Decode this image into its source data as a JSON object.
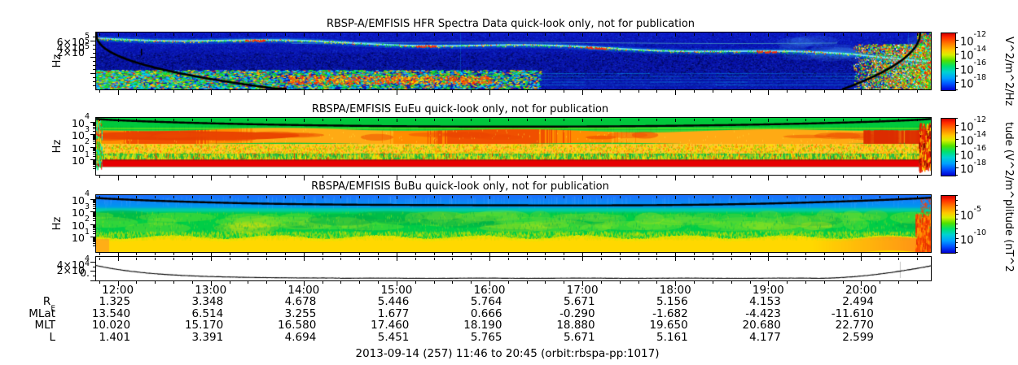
{
  "figure": {
    "caption": "2013-09-14 (257) 11:46 to 20:45 (orbit:rbspa-pp:1017)"
  },
  "panels": [
    {
      "title": "RBSP-A/EMFISIS  HFR Spectra Data quick-look only, not for publication",
      "ylabel": "Hz",
      "yticks": [
        "6×10^5",
        "4×10^5",
        "2×10^5"
      ],
      "colorbar": {
        "ticks": [
          "10^-12",
          "10^-14",
          "10^-16",
          "10^-18"
        ],
        "label": "V^2/m^2/Hz"
      }
    },
    {
      "title": "RBSPA/EMFISIS  EuEu quick-look only, not for publication",
      "ylabel": "Hz",
      "yticks": [
        "10^4",
        "10^3",
        "10^2",
        "10^1"
      ],
      "colorbar": {
        "ticks": [
          "10^-12",
          "10^-14",
          "10^-16",
          "10^-18"
        ],
        "label": "tude (V^2/m^"
      }
    },
    {
      "title": "RBSPA/EMFISIS  BuBu quick-look only, not for publication",
      "ylabel": "Hz",
      "yticks": [
        "10^4",
        "10^3",
        "10^2",
        "10^1"
      ],
      "colorbar": {
        "ticks": [
          "10^-5",
          "10^-10"
        ],
        "label": "plitude (nT^2"
      }
    },
    {
      "yticks": [
        "4×10^4",
        "2×10^4",
        "0."
      ]
    }
  ],
  "time_axis": {
    "start": "11:46",
    "end": "20:45",
    "hour_labels": [
      "12:00",
      "13:00",
      "14:00",
      "15:00",
      "16:00",
      "17:00",
      "18:00",
      "19:00",
      "20:00"
    ]
  },
  "ephemeris": {
    "rows": [
      {
        "label": "R",
        "sub": "E",
        "values": [
          "1.325",
          "3.348",
          "4.678",
          "5.446",
          "5.764",
          "5.671",
          "5.156",
          "4.153",
          "2.494"
        ]
      },
      {
        "label": "MLat",
        "values": [
          "13.540",
          "6.514",
          "3.255",
          "1.677",
          "0.666",
          "-0.290",
          "-1.682",
          "-4.423",
          "-11.610"
        ]
      },
      {
        "label": "MLT",
        "values": [
          "10.020",
          "15.170",
          "16.580",
          "17.460",
          "18.190",
          "18.880",
          "19.650",
          "20.680",
          "22.770"
        ]
      },
      {
        "label": "L",
        "values": [
          "1.401",
          "3.391",
          "4.694",
          "5.451",
          "5.765",
          "5.671",
          "5.161",
          "4.177",
          "2.599"
        ]
      }
    ]
  },
  "chart_data": [
    {
      "type": "heatmap",
      "subtype": "spectrogram",
      "title": "RBSP-A/EMFISIS HFR Spectra Data quick-look only, not for publication",
      "x_range": [
        "11:46",
        "20:45"
      ],
      "y_axis": {
        "label": "Hz",
        "scale": "linear",
        "range": [
          0,
          700000
        ],
        "ticks": [
          200000,
          400000,
          600000
        ]
      },
      "z_axis": {
        "label": "V^2/m^2/Hz",
        "scale": "log",
        "range": [
          1e-19,
          1e-11
        ],
        "ticks": [
          1e-12,
          1e-14,
          1e-16,
          1e-18
        ]
      },
      "features": [
        "dark-blue low-power background",
        "upper-hybrid emission band drifting from ~600 kHz at 12:00 down to ~300 kHz by 20:00 with yellow/red enhancements",
        "black fce trace falling off-scale near 13:30 and returning above scale after ~20:00",
        "broadband speckled low-frequency emissions 11:46-14:30 near bottom of panel",
        "intense broadband perigee emissions after 20:15 at right edge"
      ]
    },
    {
      "type": "heatmap",
      "subtype": "spectrogram",
      "title": "RBSPA/EMFISIS EuEu quick-look only, not for publication",
      "x_range": [
        "11:46",
        "20:45"
      ],
      "y_axis": {
        "label": "Hz",
        "scale": "log",
        "range": [
          1,
          20000
        ],
        "ticks": [
          10,
          100,
          1000,
          10000
        ]
      },
      "z_axis": {
        "label": "Amplitude (V^2/m^2/Hz)",
        "scale": "log",
        "range": [
          1e-19,
          1e-11
        ],
        "ticks": [
          1e-12,
          1e-14,
          1e-16,
          1e-18
        ]
      },
      "features": [
        "green background",
        "intense orange-red band ~200-1000 Hz across whole interval, deepest red 11:46-14:00 and after 19:30",
        "yellow speckled emissions 30-200 Hz with vertical burst striations",
        "solid red band below ~30 Hz across whole interval",
        "black fce arc dipping from top edge to ~2 kHz near apogee (16:00-17:00)"
      ]
    },
    {
      "type": "heatmap",
      "subtype": "spectrogram",
      "title": "RBSPA/EMFISIS BuBu quick-look only, not for publication",
      "x_range": [
        "11:46",
        "20:45"
      ],
      "y_axis": {
        "label": "Hz",
        "scale": "log",
        "range": [
          1,
          20000
        ],
        "ticks": [
          10,
          100,
          1000,
          10000
        ]
      },
      "z_axis": {
        "label": "Amplitude (nT^2/Hz)",
        "scale": "log",
        "range": [
          1e-13,
          0.01
        ],
        "ticks": [
          1e-05,
          1e-10
        ]
      },
      "features": [
        "blue band above ~2 kHz (low magnetic power)",
        "black fce arc dipping slightly below top edge near apogee",
        "green mid-band 30-2000 Hz with quasi-periodic brighter blobs 14:30-18:30",
        "yellow band below ~20 Hz across whole interval",
        "orange enhancement at low frequencies near perigee ends (before 12:00 and after 20:00)"
      ]
    },
    {
      "type": "line",
      "x_range": [
        "11:46",
        "20:45"
      ],
      "y_axis": {
        "scale": "linear",
        "range": [
          0,
          50000
        ],
        "ticks": [
          0,
          20000,
          40000
        ]
      },
      "description": "single black trace: ~2.8e4 at 11:46 decaying to near 0 by 13:00, flat near 0 until ~19:40, rising to ~3e4 by 20:45",
      "approx_points": {
        "x": [
          "11:46",
          "12:15",
          "13:00",
          "16:00",
          "19:40",
          "20:20",
          "20:45"
        ],
        "y": [
          28000,
          9000,
          1500,
          1500,
          2500,
          12000,
          30000
        ]
      }
    }
  ]
}
